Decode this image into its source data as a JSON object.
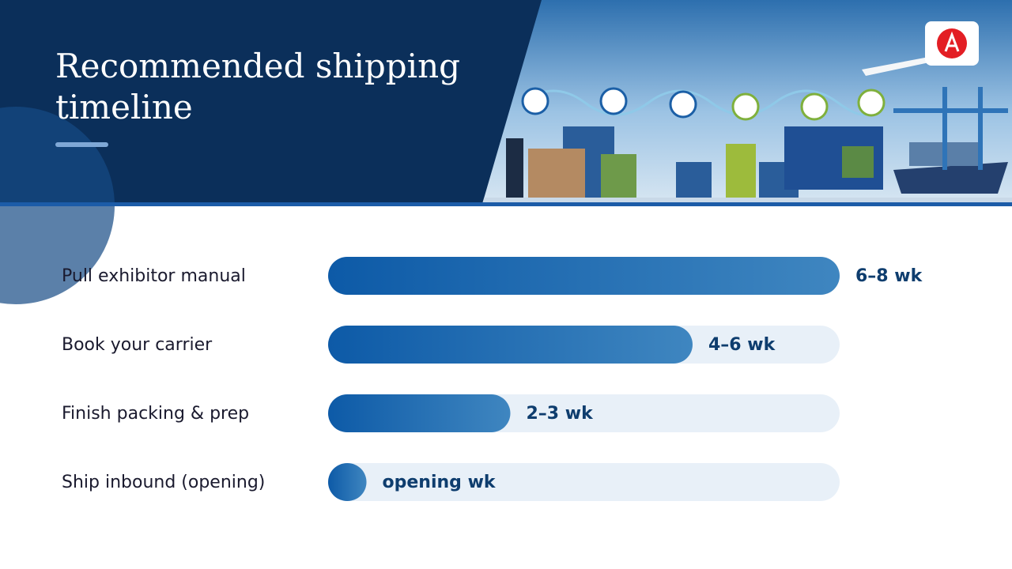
{
  "header": {
    "title": "Recommended shipping timeline"
  },
  "chart_data": {
    "type": "bar",
    "orientation": "horizontal",
    "categories": [
      "Pull exhibitor manual",
      "Book your carrier",
      "Finish packing & prep",
      "Ship inbound (opening)"
    ],
    "values": [
      8,
      5.7,
      2.85,
      0.6
    ],
    "value_labels": [
      "6–8 wk",
      "4–6 wk",
      "2–3 wk",
      "opening wk"
    ],
    "xlim": [
      0,
      8
    ],
    "color": "#0d5aa7"
  }
}
